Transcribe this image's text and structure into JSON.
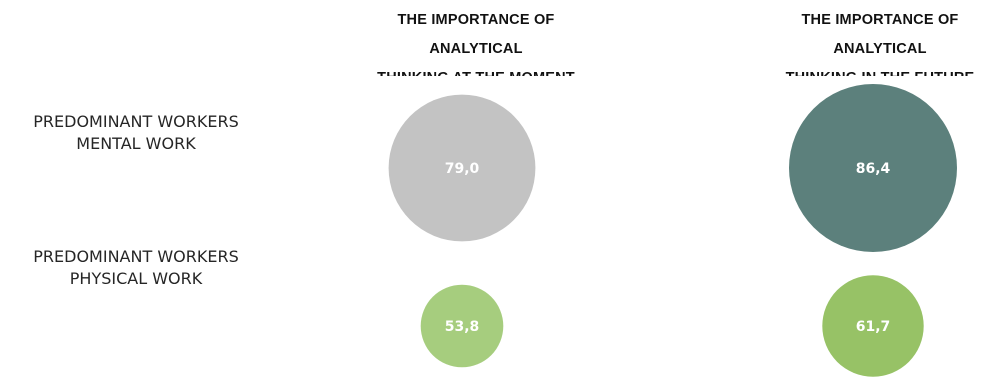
{
  "chart_data": {
    "type": "bubble",
    "columns": [
      [
        "THE IMPORTANCE OF",
        "ANALYTICAL",
        "THINKING AT THE MOMENT"
      ],
      [
        "THE IMPORTANCE OF",
        "ANALYTICAL",
        "THINKING IN THE FUTURE"
      ]
    ],
    "rows": [
      [
        "PREDOMINANT WORKERS",
        "MENTAL WORK"
      ],
      [
        "PREDOMINANT WORKERS",
        "PHYSICAL WORK"
      ]
    ],
    "values": [
      [
        79.0,
        86.4
      ],
      [
        53.8,
        61.7
      ]
    ],
    "value_labels": [
      [
        "79,0",
        "86,4"
      ],
      [
        "53,8",
        "61,7"
      ]
    ],
    "colors": [
      [
        "#c3c3c3",
        "#5c807c"
      ],
      [
        "#a6cd7e",
        "#97c266"
      ]
    ]
  }
}
